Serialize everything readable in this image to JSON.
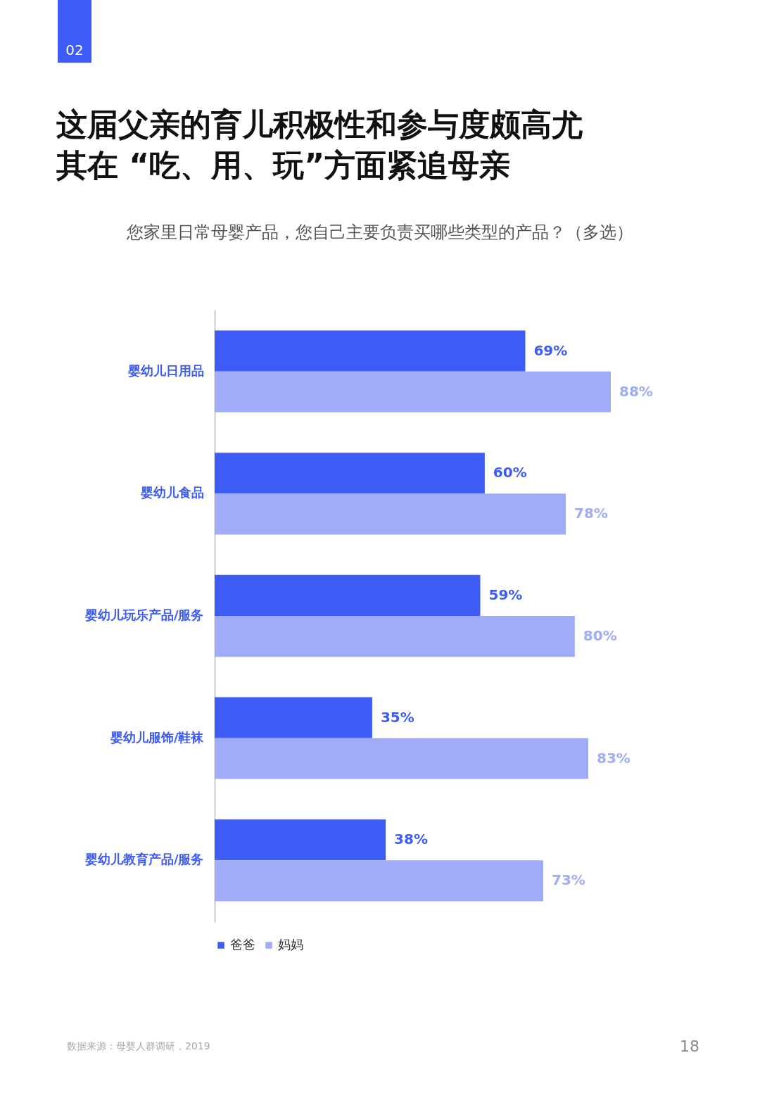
{
  "chart_data": {
    "type": "bar",
    "orientation": "horizontal",
    "title": "这届父亲的育儿积极性和参与度颇高尤其在 “吃、用、玩”方面紧追母亲",
    "subtitle": "您家里日常母婴产品，您自己主要负责买哪些类型的产品？（多选）",
    "categories": [
      "婴幼儿日用品",
      "婴幼儿食品",
      "婴幼儿玩乐产品/服务",
      "婴幼儿服饰/鞋袜",
      "婴幼儿教育产品/服务"
    ],
    "series": [
      {
        "name": "爸爸",
        "color": "#3d5cf5",
        "values": [
          69,
          60,
          59,
          35,
          38
        ],
        "value_labels": [
          "69%",
          "60%",
          "59%",
          "35%",
          "38%"
        ]
      },
      {
        "name": "妈妈",
        "color": "#a0acf7",
        "values": [
          88,
          78,
          80,
          83,
          73
        ],
        "value_labels": [
          "88%",
          "78%",
          "80%",
          "83%",
          "73%"
        ]
      }
    ],
    "legend": "bottom",
    "grid": false,
    "annotations": [
      "02",
      "数据来源：母婴人群调研，2019",
      "18"
    ]
  }
}
